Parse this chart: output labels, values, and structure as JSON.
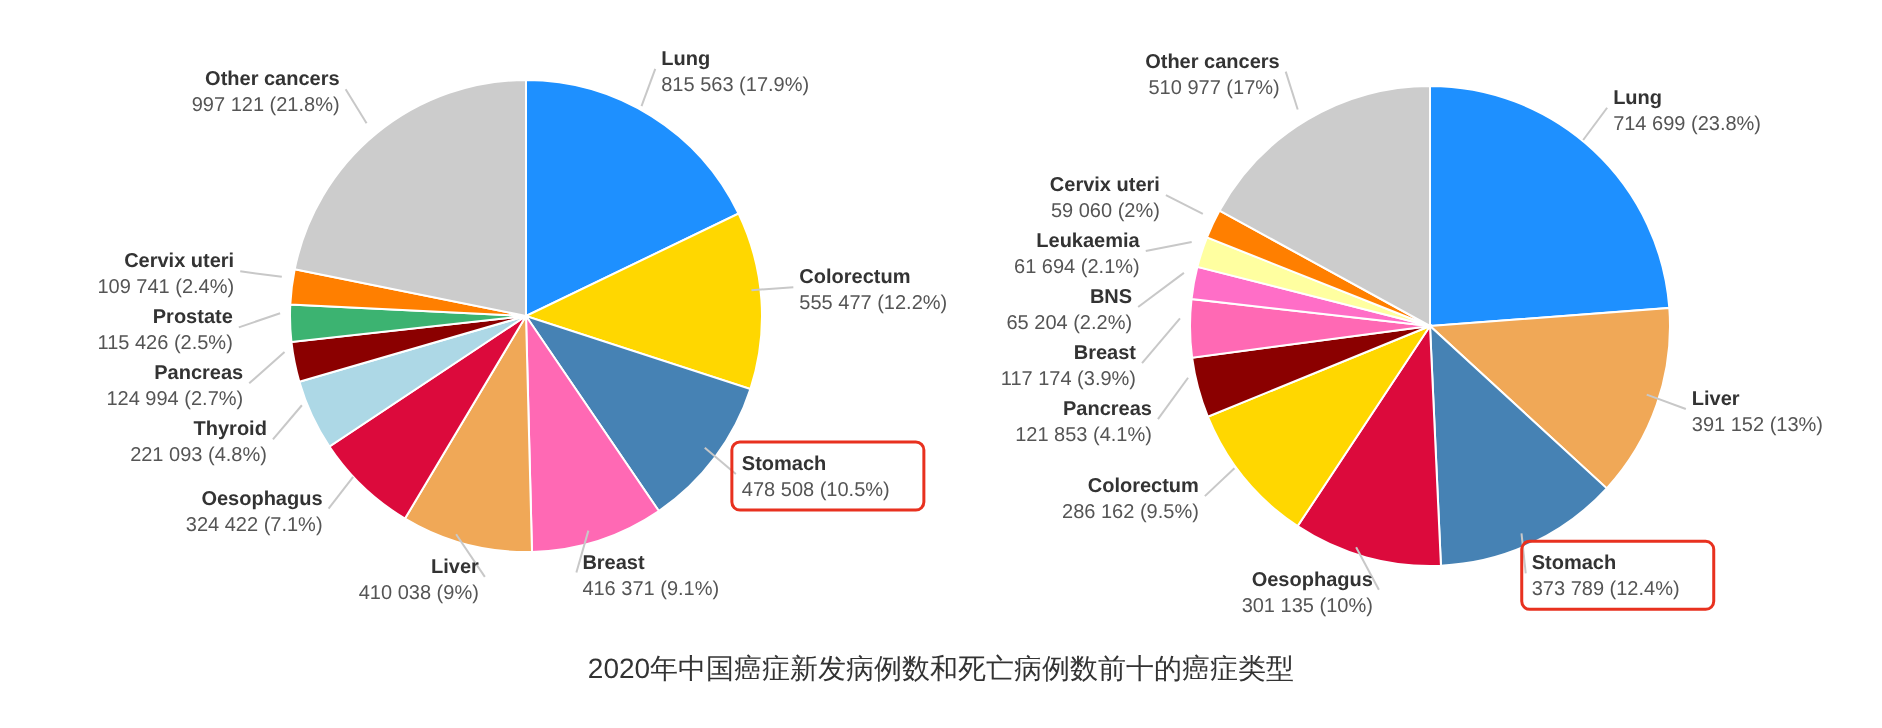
{
  "chart_data": [
    {
      "type": "pie",
      "categories": [
        "Lung",
        "Colorectum",
        "Stomach",
        "Breast",
        "Liver",
        "Oesophagus",
        "Thyroid",
        "Pancreas",
        "Prostate",
        "Cervix uteri",
        "Other cancers"
      ],
      "values": [
        815563,
        555477,
        478508,
        416371,
        410038,
        324422,
        221093,
        124994,
        115426,
        109741,
        997121
      ],
      "value_labels": [
        "815 563 (17.9%)",
        "555 477 (12.2%)",
        "478 508 (10.5%)",
        "416 371 (9.1%)",
        "410 038 (9%)",
        "324 422 (7.1%)",
        "221 093 (4.8%)",
        "124 994 (2.7%)",
        "115 426 (2.5%)",
        "109 741 (2.4%)",
        "997 121 (21.8%)"
      ],
      "colors": [
        "#1e90ff",
        "#ffd700",
        "#4682b4",
        "#ff69b4",
        "#f0a857",
        "#dc0a3c",
        "#add8e6",
        "#8b0000",
        "#3cb371",
        "#ff7f00",
        "#cccccc"
      ],
      "annotations": [
        "2020年中国癌症新发病例数和死亡病例数前十的癌症类型"
      ]
    },
    {
      "type": "pie",
      "categories": [
        "Lung",
        "Liver",
        "Stomach",
        "Oesophagus",
        "Colorectum",
        "Pancreas",
        "Breast",
        "BNS",
        "Leukaemia",
        "Cervix uteri",
        "Other cancers"
      ],
      "values": [
        714699,
        391152,
        373789,
        301135,
        286162,
        121853,
        117174,
        65204,
        61694,
        59060,
        510977
      ],
      "value_labels": [
        "714 699 (23.8%)",
        "391 152 (13%)",
        "373 789 (12.4%)",
        "301 135 (10%)",
        "286 162 (9.5%)",
        "121 853 (4.1%)",
        "117 174 (3.9%)",
        "65 204 (2.2%)",
        "61 694 (2.1%)",
        "59 060 (2%)",
        "510 977 (17%)"
      ],
      "colors": [
        "#1e90ff",
        "#f0a857",
        "#4682b4",
        "#dc0a3c",
        "#ffd700",
        "#8b0000",
        "#ff69b4",
        "#ff6ec7",
        "#ffffa0",
        "#ff7f00",
        "#cccccc"
      ]
    }
  ]
}
